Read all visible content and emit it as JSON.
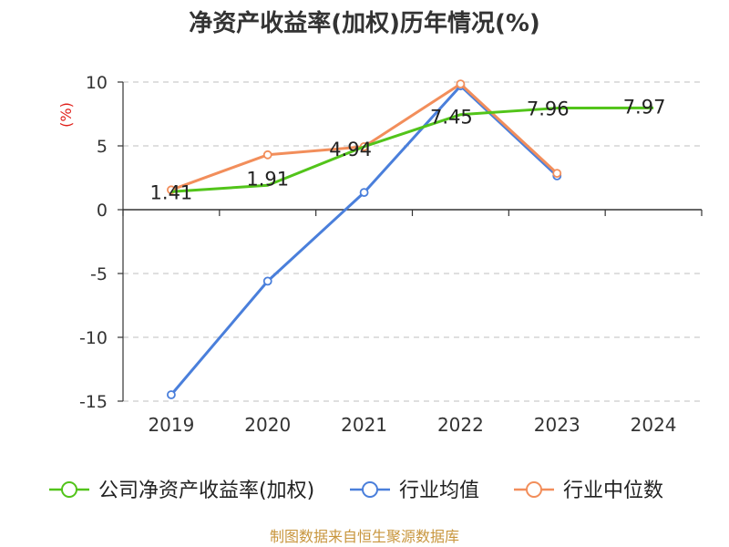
{
  "chart_data": {
    "type": "line",
    "title": "净资产收益率(加权)历年情况(%)",
    "ylabel": "(%)",
    "categories": [
      "2019",
      "2020",
      "2021",
      "2022",
      "2023",
      "2024"
    ],
    "y_ticks": [
      "10",
      "5",
      "0",
      "-5",
      "-10",
      "-15"
    ],
    "ylim": [
      -15,
      10
    ],
    "grid": true,
    "legend_position": "bottom",
    "series": [
      {
        "name": "公司净资产收益率(加权)",
        "color": "#52c41a",
        "values": [
          1.41,
          1.91,
          4.94,
          7.45,
          7.96,
          7.97
        ],
        "labels": [
          "1.41",
          "1.91",
          "4.94",
          "7.45",
          "7.96",
          "7.97"
        ]
      },
      {
        "name": "行业均值",
        "color": "#4a7fdb",
        "values": [
          -14.5,
          -5.6,
          1.35,
          9.7,
          2.65,
          null
        ]
      },
      {
        "name": "行业中位数",
        "color": "#f28e5b",
        "values": [
          1.55,
          4.3,
          4.94,
          9.85,
          2.85,
          null
        ]
      }
    ]
  },
  "source": "制图数据来自恒生聚源数据库"
}
